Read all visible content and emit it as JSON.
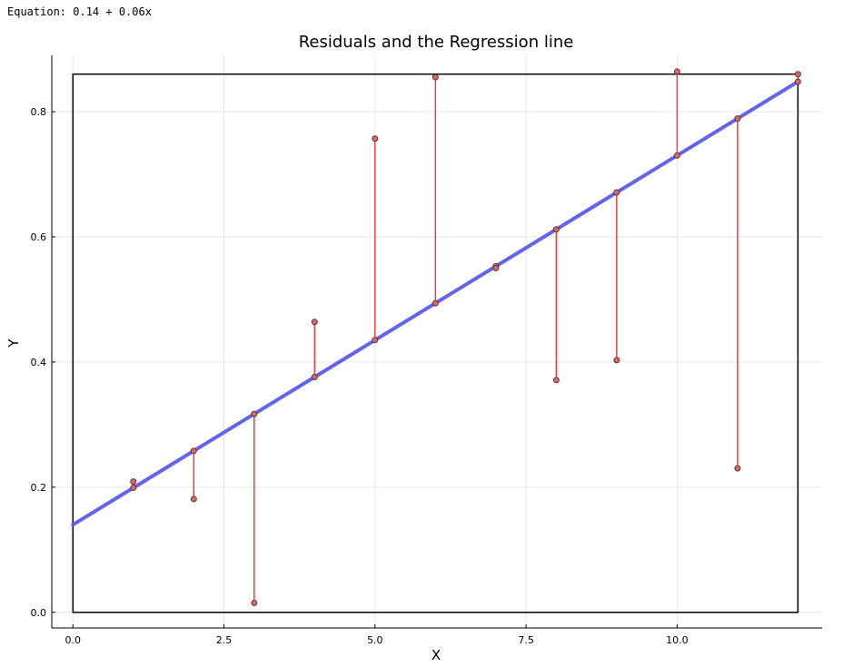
{
  "equation_text": "Equation: 0.14 + 0.06x",
  "chart_data": {
    "type": "scatter",
    "title": "Residuals and the Regression line",
    "xlabel": "X",
    "ylabel": "Y",
    "xlim": [
      -0.35,
      12.4
    ],
    "ylim": [
      -0.025,
      0.89
    ],
    "x_ticks": [
      0.0,
      2.5,
      5.0,
      7.5,
      10.0
    ],
    "x_tick_labels": [
      "0.0",
      "2.5",
      "5.0",
      "7.5",
      "10.0"
    ],
    "y_ticks": [
      0.0,
      0.2,
      0.4,
      0.6,
      0.8
    ],
    "y_tick_labels": [
      "0.0",
      "0.2",
      "0.4",
      "0.6",
      "0.8"
    ],
    "grid": true,
    "regression_line": {
      "intercept": 0.14,
      "slope": 0.059,
      "x_range": [
        0,
        12
      ],
      "color": "#5b5bf0"
    },
    "points": [
      {
        "x": 1,
        "y": 0.209
      },
      {
        "x": 2,
        "y": 0.181
      },
      {
        "x": 3,
        "y": 0.015
      },
      {
        "x": 4,
        "y": 0.464
      },
      {
        "x": 5,
        "y": 0.757
      },
      {
        "x": 6,
        "y": 0.855
      },
      {
        "x": 7,
        "y": 0.55
      },
      {
        "x": 8,
        "y": 0.371
      },
      {
        "x": 9,
        "y": 0.403
      },
      {
        "x": 10,
        "y": 0.864
      },
      {
        "x": 11,
        "y": 0.23
      },
      {
        "x": 12,
        "y": 0.86
      }
    ],
    "point_color": "#e06666",
    "residual_color": "#e84040",
    "bounding_rectangle": {
      "x": [
        0,
        12
      ],
      "y": [
        0,
        0.86
      ]
    }
  }
}
